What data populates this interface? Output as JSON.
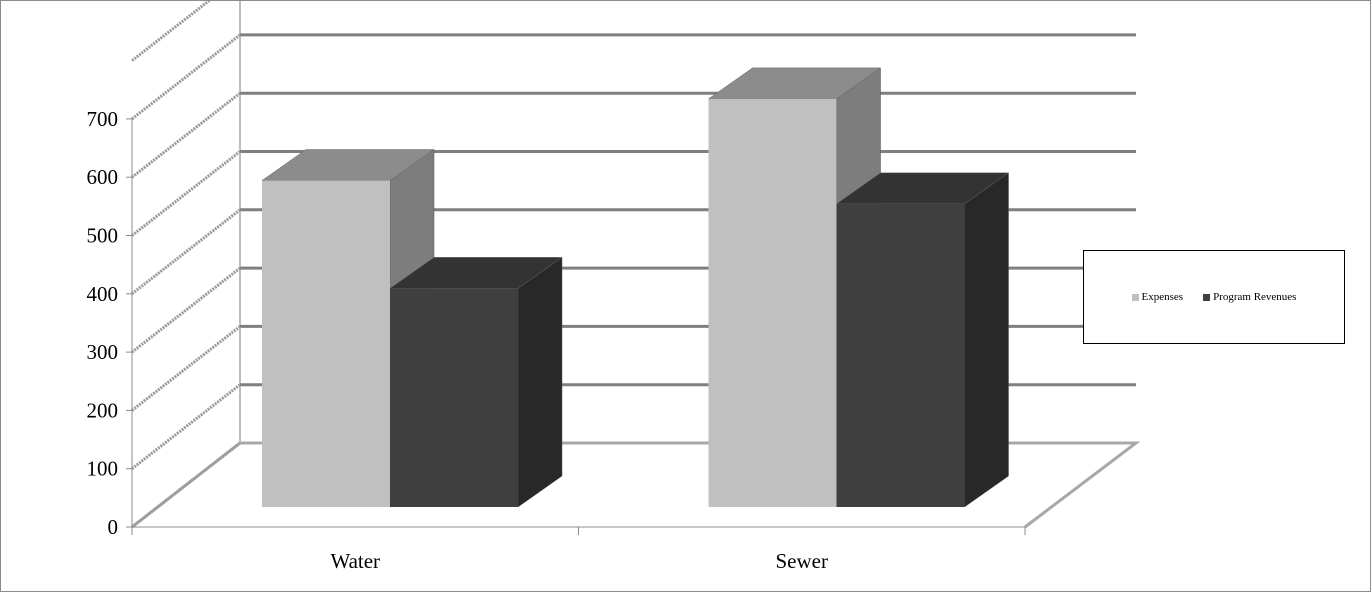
{
  "chart_data": {
    "type": "bar",
    "title": "",
    "xlabel": "",
    "ylabel": "",
    "categories": [
      "Water",
      "Sewer"
    ],
    "series": [
      {
        "name": "Expenses",
        "values": [
          560,
          700
        ],
        "color": "#c0c0c0"
      },
      {
        "name": "Program Revenues",
        "values": [
          375,
          520
        ],
        "color": "#3f3f3f"
      }
    ],
    "ylim": [
      0,
      700
    ],
    "yticks": [
      "0",
      "100",
      "200",
      "300",
      "400",
      "500",
      "600",
      "700"
    ],
    "grid": true,
    "style": "3d",
    "legend_position": "right"
  }
}
